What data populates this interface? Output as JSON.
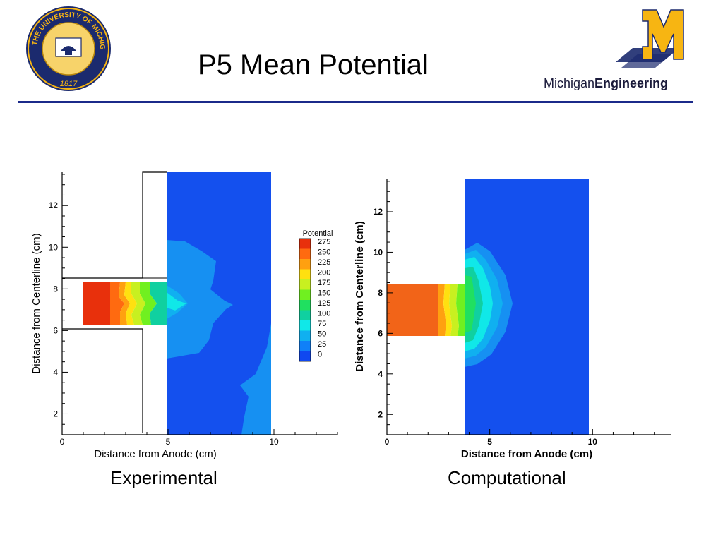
{
  "slide": {
    "title": "P5 Mean Potential",
    "logo_seal_text": "THE UNIVERSITY OF MICHIGAN",
    "logo_seal_year": "1817",
    "logo_brand_prefix": "Michigan",
    "logo_brand_bold": "Engineering",
    "colors": {
      "rule": "#1b2a8a",
      "maize": "#f7b512",
      "blue": "#1b2a6e"
    }
  },
  "chart_data": [
    {
      "type": "heatmap",
      "caption": "Experimental",
      "xlabel": "Distance from Anode (cm)",
      "ylabel": "Distance from Centerline (cm)",
      "xlim": [
        0,
        13
      ],
      "ylim": [
        1,
        13.6
      ],
      "x_ticks": [
        "0",
        "5",
        "10"
      ],
      "x_tick_values": [
        0,
        5,
        10
      ],
      "y_ticks": [
        "2",
        "4",
        "6",
        "8",
        "10",
        "12"
      ],
      "y_tick_values": [
        2,
        4,
        6,
        8,
        10,
        12
      ],
      "legend": {
        "title": "Potential",
        "levels": [
          "275",
          "250",
          "225",
          "200",
          "175",
          "150",
          "125",
          "100",
          "75",
          "50",
          "25",
          "0"
        ],
        "colors": [
          "#e8300c",
          "#ff6a10",
          "#ffa010",
          "#ffe010",
          "#c8f020",
          "#70f020",
          "#20e060",
          "#10d0a0",
          "#10e8e8",
          "#10b0f0",
          "#1080f8",
          "#1048f0"
        ]
      },
      "walls": [
        {
          "from": [
            0,
            8.6
          ],
          "to": [
            3.9,
            8.6
          ]
        },
        {
          "from": [
            3.9,
            8.6
          ],
          "to": [
            3.9,
            13.6
          ]
        },
        {
          "from": [
            3.9,
            13.6
          ],
          "to": [
            5,
            13.6
          ]
        },
        {
          "from": [
            0,
            6.2
          ],
          "to": [
            3.9,
            6.2
          ]
        },
        {
          "from": [
            3.9,
            6.2
          ],
          "to": [
            3.9,
            1.2
          ]
        }
      ]
    },
    {
      "type": "heatmap",
      "caption": "Computational",
      "xlabel": "Distance from Anode (cm)",
      "ylabel": "Distance from Centerline (cm)",
      "xlim": [
        0,
        13.8
      ],
      "ylim": [
        1,
        13.6
      ],
      "x_ticks": [
        "0",
        "5",
        "10"
      ],
      "x_tick_values": [
        0,
        5,
        10
      ],
      "y_ticks": [
        "2",
        "4",
        "6",
        "8",
        "10",
        "12"
      ],
      "y_tick_values": [
        2,
        4,
        6,
        8,
        10,
        12
      ]
    }
  ]
}
